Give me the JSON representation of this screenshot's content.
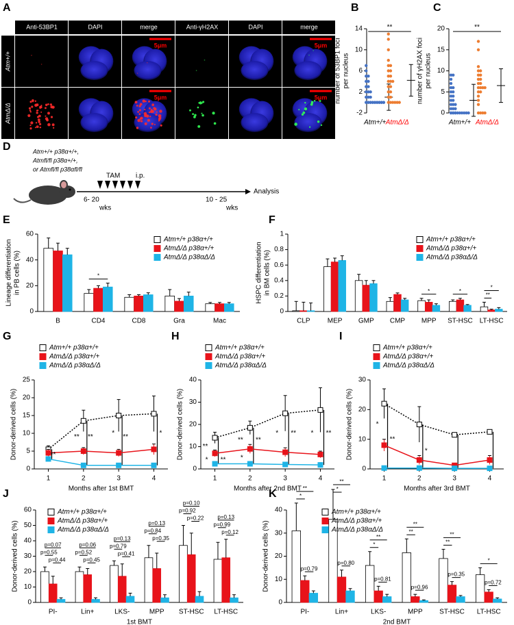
{
  "panel_a": {
    "label": "A",
    "columns": [
      "Anti-53BP1",
      "DAPI",
      "merge",
      "Anti-γH2AX",
      "DAPI",
      "merge"
    ],
    "rows": [
      "Atm+/+",
      "AtmΔ/Δ"
    ],
    "scale_bars": [
      "5μm",
      "5μm",
      "5μm",
      "5μm"
    ]
  },
  "panel_d": {
    "label": "D",
    "genotypes": [
      "Atm+/+ p38α+/+,",
      "Atmfl/fl p38α+/+,",
      "or Atmfl/fl p38αfl/fl"
    ],
    "treatment": "TAM",
    "route": "i.p.",
    "start": "6- 20",
    "start_unit": "wks",
    "end": "10 - 25",
    "end_unit": "wks",
    "endpoint": "Analysis"
  },
  "chart_data": [
    {
      "label": "B",
      "type": "strip",
      "ylabel": [
        "number of 53BP1 foci",
        "per nucleus"
      ],
      "categories": [
        "Atm+/+",
        "AtmΔ/Δ"
      ],
      "category_colors": [
        "#000000",
        "#ff0000"
      ],
      "ylim": [
        -2,
        14
      ],
      "yticks": [
        -2,
        2,
        6,
        10,
        14
      ],
      "series": [
        {
          "color": "#4472c4",
          "values": [
            0,
            0,
            0,
            0,
            0,
            0,
            0,
            0,
            0,
            0,
            0,
            0,
            0,
            0,
            0,
            0,
            0,
            0,
            1,
            1,
            1,
            2,
            2,
            2,
            3,
            3,
            4,
            4,
            5,
            5,
            6,
            7
          ],
          "mean": 1,
          "sd": 2.5
        },
        {
          "color": "#ed7d31",
          "values": [
            0,
            0,
            0,
            0,
            0,
            0,
            1,
            1,
            2,
            2,
            3,
            3,
            4,
            4,
            4,
            5,
            5,
            6,
            6,
            7,
            7,
            8,
            10,
            12,
            13
          ],
          "mean": 4.2,
          "sd": 3
        }
      ],
      "annotations": [
        "**"
      ]
    },
    {
      "label": "C",
      "type": "strip",
      "ylabel": [
        "number of γH2AX foci",
        "per nucleus"
      ],
      "categories": [
        "Atm+/+",
        "AtmΔ/Δ"
      ],
      "category_colors": [
        "#000000",
        "#ff0000"
      ],
      "ylim": [
        0,
        20
      ],
      "yticks": [
        0,
        5,
        10,
        15,
        20
      ],
      "series": [
        {
          "color": "#4472c4",
          "values": [
            0,
            0,
            0,
            0,
            0,
            0,
            0,
            0,
            0,
            0,
            0,
            0,
            1,
            1,
            1,
            2,
            2,
            2,
            3,
            3,
            4,
            4,
            5,
            5,
            6,
            6,
            7,
            8,
            9,
            9
          ],
          "mean": 3,
          "sd": 3.8
        },
        {
          "color": "#ed7d31",
          "values": [
            0,
            0,
            0,
            0,
            2,
            3,
            4,
            5,
            5,
            6,
            6,
            6,
            6,
            7,
            7,
            8,
            8,
            9,
            9,
            10,
            10,
            11,
            15,
            17
          ],
          "mean": 6.5,
          "sd": 4
        }
      ],
      "annotations": [
        "**"
      ]
    },
    {
      "label": "E",
      "type": "bar",
      "ylabel": [
        "Lineage differentiation",
        "in PB cells (%)"
      ],
      "categories": [
        "B",
        "CD4",
        "CD8",
        "Gra",
        "Mac"
      ],
      "ylim": [
        0,
        60
      ],
      "yticks": [
        0,
        20,
        40,
        60
      ],
      "series": [
        {
          "name": "Atm+/+ p38α+/+",
          "color": "#ffffff",
          "values": [
            49,
            14,
            11,
            12,
            6
          ],
          "errors": [
            8,
            3,
            2,
            5,
            1
          ]
        },
        {
          "name": "AtmΔ/Δ p38α+/+",
          "color": "#e8131a",
          "values": [
            47,
            18,
            12,
            8,
            6
          ],
          "errors": [
            6,
            2,
            1,
            2,
            1
          ]
        },
        {
          "name": "AtmΔ/Δ p38αΔ/Δ",
          "color": "#1fb4e6",
          "values": [
            44,
            19,
            13,
            12,
            6
          ],
          "errors": [
            5,
            3,
            1.5,
            3,
            1
          ]
        }
      ],
      "annotations": [
        "*"
      ]
    },
    {
      "label": "F",
      "type": "bar",
      "ylabel": [
        "HSPC differentiation",
        "in BM cells (%)"
      ],
      "categories": [
        "CLP",
        "MEP",
        "GMP",
        "CMP",
        "MPP",
        "ST-HSC",
        "LT-HSC"
      ],
      "ylim": [
        0,
        1
      ],
      "yticks": [
        0,
        0.2,
        0.4,
        0.6,
        0.8,
        1
      ],
      "series": [
        {
          "name": "Atm+/+ p38α+/+",
          "color": "#ffffff",
          "values": [
            0.01,
            0.58,
            0.4,
            0.13,
            0.14,
            0.13,
            0.06
          ],
          "errors": [
            0.12,
            0.1,
            0.08,
            0.05,
            0.03,
            0.02,
            0.06
          ]
        },
        {
          "name": "AtmΔ/Δ p38α+/+",
          "color": "#e8131a",
          "values": [
            0.01,
            0.64,
            0.34,
            0.22,
            0.12,
            0.15,
            0.02
          ],
          "errors": [
            0.11,
            0.05,
            0.06,
            0.02,
            0.03,
            0.02,
            0.01
          ]
        },
        {
          "name": "AtmΔ/Δ p38αΔ/Δ",
          "color": "#1fb4e6",
          "values": [
            0.01,
            0.66,
            0.36,
            0.15,
            0.08,
            0.08,
            0.03
          ],
          "errors": [
            0.1,
            0.06,
            0.04,
            0.02,
            0.02,
            0.01,
            0.02
          ]
        }
      ],
      "annotations": [
        "*",
        "*",
        "*",
        "**"
      ]
    },
    {
      "label": "G",
      "type": "line",
      "ylabel": "Donor-derived cells (%)",
      "xlabel": "Months after 1st BMT",
      "x": [
        1,
        2,
        3,
        4
      ],
      "xlim": [
        0.6,
        4.4
      ],
      "xticks": [
        1,
        2,
        3,
        4
      ],
      "ylim": [
        0,
        25
      ],
      "yticks": [
        0,
        5,
        10,
        15,
        20,
        25
      ],
      "series": [
        {
          "name": "Atm+/+ p38α+/+",
          "color": "#ffffff",
          "line_style": "dotted",
          "values": [
            5.5,
            13.5,
            15,
            15.5
          ],
          "errors": [
            1,
            3,
            4.5,
            5
          ]
        },
        {
          "name": "AtmΔ/Δ p38α+/+",
          "color": "#e8131a",
          "line_style": "solid",
          "values": [
            4.5,
            5,
            4.5,
            5.5
          ],
          "errors": [
            1,
            1,
            1,
            1.5
          ]
        },
        {
          "name": "AtmΔ/Δ p38αΔ/Δ",
          "color": "#1fb4e6",
          "line_style": "solid",
          "values": [
            2.8,
            1,
            1,
            1
          ],
          "errors": [
            0.5,
            0.5,
            0.5,
            0.5
          ]
        }
      ],
      "annotations": [
        "**",
        "**",
        "**",
        "*",
        "**",
        "*"
      ]
    },
    {
      "label": "H",
      "type": "line",
      "ylabel": "Donor-derived cells (%)",
      "xlabel": "Months after 2nd BMT",
      "x": [
        1,
        2,
        3,
        4
      ],
      "xlim": [
        0.6,
        4.4
      ],
      "xticks": [
        1,
        2,
        3,
        4
      ],
      "ylim": [
        0,
        40
      ],
      "yticks": [
        0,
        10,
        20,
        30,
        40
      ],
      "series": [
        {
          "name": "Atm+/+ p38α+/+",
          "color": "#ffffff",
          "line_style": "dotted",
          "values": [
            14,
            18.5,
            25,
            26.5
          ],
          "errors": [
            2.5,
            3,
            8,
            10
          ]
        },
        {
          "name": "AtmΔ/Δ p38α+/+",
          "color": "#e8131a",
          "line_style": "solid",
          "values": [
            7,
            9,
            7.5,
            6.5
          ],
          "errors": [
            1.5,
            2,
            2,
            1.5
          ]
        },
        {
          "name": "AtmΔ/Δ p38αΔ/Δ",
          "color": "#1fb4e6",
          "line_style": "solid",
          "values": [
            2.3,
            2.3,
            2,
            1.8
          ],
          "errors": [
            1,
            1,
            1,
            1
          ]
        }
      ],
      "annotations": [
        "**",
        "*",
        "**",
        "**",
        "*",
        "**",
        "*",
        "**",
        "*",
        "**"
      ]
    },
    {
      "label": "I",
      "type": "line",
      "ylabel": "Donor-derived cells (%)",
      "xlabel": "Months after 3rd BMT",
      "x": [
        1,
        2,
        3,
        4
      ],
      "xlim": [
        0.6,
        4.4
      ],
      "xticks": [
        1,
        2,
        3,
        4
      ],
      "ylim": [
        0,
        30
      ],
      "yticks": [
        0,
        10,
        20,
        30
      ],
      "series": [
        {
          "name": "Atm+/+ p38α+/+",
          "color": "#ffffff",
          "line_style": "dotted",
          "values": [
            22,
            15,
            11.5,
            12.5
          ],
          "errors": [
            5,
            6,
            0,
            0
          ]
        },
        {
          "name": "AtmΔ/Δ p38α+/+",
          "color": "#e8131a",
          "line_style": "solid",
          "values": [
            8,
            3,
            1.2,
            3
          ],
          "errors": [
            2,
            1.5,
            0,
            1.5
          ]
        },
        {
          "name": "AtmΔ/Δ p38αΔ/Δ",
          "color": "#1fb4e6",
          "line_style": "solid",
          "values": [
            0.3,
            0.3,
            0.2,
            0.2
          ],
          "errors": [
            0,
            0,
            0,
            0
          ]
        }
      ],
      "annotations": [
        "*",
        "**",
        "*"
      ]
    },
    {
      "label": "J",
      "type": "bar",
      "ylabel": "Donor-derived cells (%)",
      "xlabel": "1st BMT",
      "categories": [
        "PI-",
        "Lin+",
        "LKS-",
        "MPP",
        "ST-HSC",
        "LT-HSC"
      ],
      "ylim": [
        0,
        60
      ],
      "yticks": [
        0,
        10,
        20,
        30,
        40,
        50,
        60
      ],
      "series": [
        {
          "name": "Atm+/+ p38α+/+",
          "color": "#ffffff",
          "values": [
            20,
            20,
            24,
            29,
            37,
            28
          ],
          "errors": [
            3,
            3,
            3,
            8,
            13,
            11
          ]
        },
        {
          "name": "AtmΔ/Δ p38α+/+",
          "color": "#e8131a",
          "values": [
            12,
            18,
            17,
            22,
            31,
            29
          ],
          "errors": [
            5,
            4,
            8,
            10,
            14,
            12
          ]
        },
        {
          "name": "AtmΔ/Δ p38αΔ/Δ",
          "color": "#1fb4e6",
          "values": [
            2,
            2,
            4,
            3,
            4,
            3
          ],
          "errors": [
            1,
            1,
            2,
            2,
            3,
            2
          ]
        }
      ],
      "annotations": [
        "p=0.07",
        "p=0.55",
        "p=0.44",
        "p=0.06",
        "p=0.52",
        "p=0.45",
        "p=0.13",
        "p=0.79",
        "p=0.41",
        "p=0.13",
        "p=0.84",
        "p=0.35",
        "p=0.10",
        "p=0.92",
        "p=0.22",
        "p=0.13",
        "p=0.99",
        "p=0.12"
      ]
    },
    {
      "label": "K",
      "type": "bar",
      "ylabel": "Donor-derived cells (%)",
      "xlabel": "2nd BMT",
      "categories": [
        "PI-",
        "Lin+",
        "LKS-",
        "MPP",
        "ST-HSC",
        "LT-HSC"
      ],
      "ylim": [
        0,
        40
      ],
      "yticks": [
        0,
        10,
        20,
        30,
        40
      ],
      "series": [
        {
          "name": "Atm+/+ p38α+/+",
          "color": "#ffffff",
          "values": [
            31,
            36,
            16,
            21.5,
            19,
            12
          ],
          "errors": [
            12,
            13,
            6,
            6,
            4,
            3
          ]
        },
        {
          "name": "AtmΔ/Δ p38α+/+",
          "color": "#e8131a",
          "values": [
            9.5,
            11,
            5,
            2.5,
            7.5,
            4.5
          ],
          "errors": [
            2,
            3,
            2,
            1,
            1.5,
            1
          ]
        },
        {
          "name": "AtmΔ/Δ p38αΔ/Δ",
          "color": "#1fb4e6",
          "values": [
            4,
            5,
            2.5,
            0.8,
            2.5,
            1.5
          ],
          "errors": [
            1,
            1,
            1,
            0.3,
            0.5,
            0.5
          ]
        }
      ],
      "annotations": [
        "**",
        "*",
        "p=0.79",
        "**",
        "*",
        "p=0.80",
        "**",
        "*",
        "p=0.81",
        "**",
        "**",
        "p=0.96",
        "**",
        "**",
        "p=0.35",
        "*",
        "p=0.72"
      ]
    }
  ]
}
